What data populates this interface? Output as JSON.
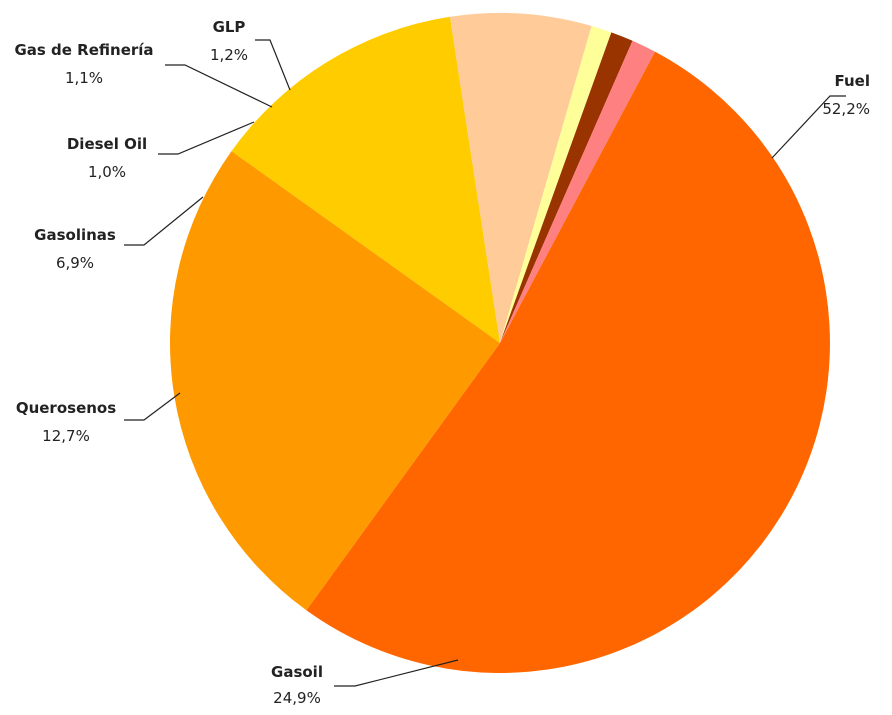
{
  "chart_data": {
    "type": "pie",
    "title": "",
    "slices": [
      {
        "label": "Fuel",
        "value": 52.2,
        "value_label": "52,2%",
        "color": "#FF6600"
      },
      {
        "label": "Gasoil",
        "value": 24.9,
        "value_label": "24,9%",
        "color": "#FF9900"
      },
      {
        "label": "Querosenos",
        "value": 12.7,
        "value_label": "12,7%",
        "color": "#FFCC00"
      },
      {
        "label": "Gasolinas",
        "value": 6.9,
        "value_label": "6,9%",
        "color": "#FFCC99"
      },
      {
        "label": "Diesel Oil",
        "value": 1.0,
        "value_label": "1,0%",
        "color": "#FFFF99"
      },
      {
        "label": "Gas de Refinería",
        "value": 1.1,
        "value_label": "1,1%",
        "color": "#993300"
      },
      {
        "label": "GLP",
        "value": 1.2,
        "value_label": "1,2%",
        "color": "#FF8080"
      }
    ],
    "start_angle_deg": 28,
    "direction": "clockwise",
    "legend": "none",
    "data_labels": "outside with leader lines"
  }
}
